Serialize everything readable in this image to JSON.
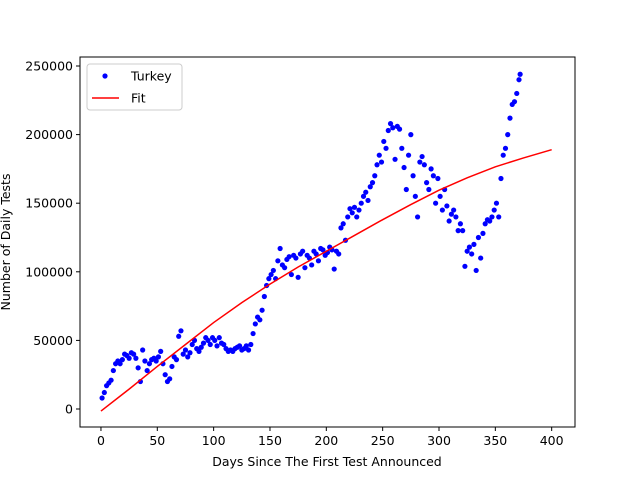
{
  "chart_data": {
    "type": "scatter",
    "xlabel": "Days Since The First Test Announced",
    "ylabel": "Number of Daily Tests",
    "xlim": [
      -18.6,
      420.7
    ],
    "ylim": [
      -13120,
      256560
    ],
    "xticks": [
      0,
      50,
      100,
      150,
      200,
      250,
      300,
      350,
      400
    ],
    "yticks": [
      0,
      50000,
      100000,
      150000,
      200000,
      250000
    ],
    "legend": "upper left",
    "series": [
      {
        "name": "Turkey",
        "color": "#0000ff",
        "style": "marker",
        "x": [
          1,
          3,
          5,
          7,
          9,
          11,
          13,
          15,
          17,
          19,
          21,
          23,
          25,
          27,
          29,
          31,
          33,
          35,
          37,
          39,
          41,
          43,
          45,
          47,
          49,
          51,
          53,
          55,
          57,
          59,
          61,
          63,
          65,
          67,
          69,
          71,
          73,
          75,
          77,
          79,
          81,
          83,
          85,
          87,
          89,
          91,
          93,
          95,
          97,
          99,
          101,
          103,
          105,
          107,
          109,
          111,
          113,
          115,
          117,
          119,
          121,
          123,
          125,
          127,
          129,
          131,
          133,
          135,
          137,
          139,
          141,
          143,
          145,
          147,
          149,
          151,
          153,
          155,
          157,
          159,
          161,
          163,
          165,
          167,
          169,
          171,
          173,
          175,
          177,
          179,
          181,
          183,
          185,
          187,
          189,
          191,
          193,
          195,
          197,
          199,
          201,
          203,
          205,
          207,
          209,
          211,
          213,
          215,
          217,
          219,
          221,
          223,
          225,
          227,
          229,
          231,
          233,
          235,
          237,
          239,
          241,
          243,
          245,
          247,
          249,
          251,
          253,
          255,
          257,
          259,
          261,
          263,
          265,
          267,
          269,
          271,
          273,
          275,
          277,
          279,
          281,
          283,
          285,
          287,
          289,
          291,
          293,
          295,
          297,
          299,
          301,
          303,
          305,
          307,
          309,
          311,
          313,
          315,
          317,
          319,
          321,
          323,
          325,
          327,
          329,
          331,
          333,
          335,
          337,
          339,
          341,
          343,
          345,
          347,
          349,
          351,
          353,
          355,
          357,
          359,
          361,
          363,
          365,
          367,
          369,
          371,
          372
        ],
        "values": [
          8000,
          12000,
          17000,
          19000,
          21000,
          28000,
          33000,
          35000,
          33000,
          36000,
          40000,
          39000,
          37000,
          41000,
          40000,
          37000,
          30000,
          20000,
          43000,
          35000,
          28000,
          33000,
          36000,
          37000,
          35000,
          38000,
          42000,
          33000,
          25000,
          20000,
          22000,
          31000,
          38000,
          36000,
          53000,
          57000,
          40000,
          43000,
          38000,
          41000,
          47000,
          50000,
          44000,
          42000,
          45000,
          48000,
          52000,
          50000,
          47000,
          52000,
          50000,
          46000,
          52000,
          48000,
          47000,
          44000,
          42000,
          43000,
          42000,
          44000,
          45000,
          46000,
          43000,
          44000,
          46000,
          43000,
          47000,
          55000,
          62000,
          67000,
          65000,
          72000,
          82000,
          90000,
          95000,
          98000,
          101000,
          95000,
          108000,
          117000,
          105000,
          103000,
          109000,
          111000,
          98000,
          112000,
          110000,
          96000,
          113000,
          115000,
          103000,
          112000,
          110000,
          105000,
          115000,
          113000,
          108000,
          117000,
          116000,
          112000,
          114000,
          118000,
          116000,
          102000,
          115000,
          113000,
          132000,
          135000,
          123000,
          140000,
          146000,
          143000,
          147000,
          140000,
          145000,
          150000,
          155000,
          158000,
          152000,
          162000,
          165000,
          170000,
          178000,
          185000,
          180000,
          195000,
          190000,
          203000,
          208000,
          205000,
          182000,
          206000,
          204000,
          190000,
          176000,
          160000,
          185000,
          200000,
          170000,
          155000,
          140000,
          180000,
          184000,
          178000,
          165000,
          160000,
          175000,
          170000,
          150000,
          168000,
          155000,
          145000,
          160000,
          148000,
          137000,
          142000,
          145000,
          140000,
          130000,
          135000,
          130000,
          104000,
          115000,
          118000,
          113000,
          120000,
          101000,
          125000,
          110000,
          128000,
          135000,
          138000,
          137000,
          140000,
          145000,
          150000,
          140000,
          168000,
          185000,
          190000,
          200000,
          212000,
          222000,
          224000,
          230000,
          240000,
          244000
        ]
      },
      {
        "name": "Fit",
        "color": "#ff0000",
        "style": "line",
        "x": [
          0,
          25,
          50,
          75,
          100,
          125,
          150,
          175,
          200,
          225,
          250,
          275,
          300,
          325,
          350,
          375,
          400
        ],
        "values": [
          -1500,
          14500,
          31000,
          47000,
          63000,
          77500,
          91000,
          103500,
          115000,
          126500,
          138000,
          149000,
          159500,
          168500,
          176500,
          183000,
          189000
        ]
      }
    ]
  }
}
